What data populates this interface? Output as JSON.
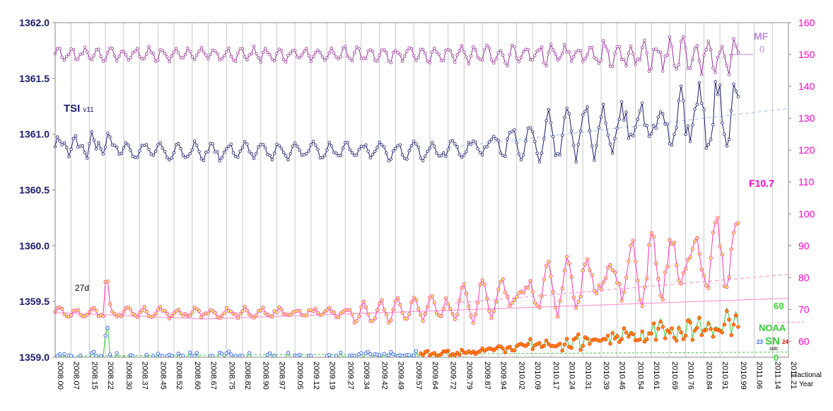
{
  "chart_data": {
    "type": "line",
    "title": "",
    "xlabel": "Fractional Year",
    "x_ticks": [
      "2008.00",
      "2008.07",
      "2008.15",
      "2008.22",
      "2008.30",
      "2008.37",
      "2008.45",
      "2008.52",
      "2008.60",
      "2008.67",
      "2008.75",
      "2008.82",
      "2008.90",
      "2008.97",
      "2009.05",
      "2009.12",
      "2009.19",
      "2009.27",
      "2009.34",
      "2009.42",
      "2009.49",
      "2009.57",
      "2009.64",
      "2009.72",
      "2009.79",
      "2009.87",
      "2009.94",
      "2010.02",
      "2010.09",
      "2010.17",
      "2010.24",
      "2010.31",
      "2010.39",
      "2010.46",
      "2010.54",
      "2010.61",
      "2010.69",
      "2010.76",
      "2010.84",
      "2010.91",
      "2010.99",
      "2011.06",
      "2011.14",
      "2011.21"
    ],
    "xlim": [
      2008.0,
      2011.21
    ],
    "y_left": {
      "ticks": [
        "1359.0",
        "1359.5",
        "1360.0",
        "1360.5",
        "1361.0",
        "1361.5",
        "1362.0"
      ],
      "ylim": [
        1359.0,
        1362.0
      ],
      "color": "#1a1a6e"
    },
    "y_right": {
      "ticks": [
        "60",
        "70",
        "80",
        "90",
        "100",
        "110",
        "120",
        "130",
        "140",
        "150",
        "160"
      ],
      "ylim": [
        55,
        160
      ],
      "color": "#ff00cc"
    },
    "y_right_small": {
      "ticks": [
        "0",
        "60"
      ],
      "color": "#33dd33"
    },
    "labels": {
      "tsi": "TSI",
      "tsi_sub": "v11",
      "mf": "MF",
      "mf_zero": "0",
      "f107": "F10.7",
      "d27": "27d",
      "noaa": "NOAA",
      "sn": "SN",
      "sn_sub": "sidc",
      "sn_23": "23",
      "sn_24": "24"
    },
    "series": [
      {
        "name": "MF",
        "color": "#993399",
        "base": 150,
        "x": [],
        "values": []
      },
      {
        "name": "TSI",
        "color": "#1a1a6e",
        "x": [],
        "values": []
      },
      {
        "name": "F10.7",
        "color": "#ff33aa",
        "x": [],
        "values": []
      },
      {
        "name": "NOAA",
        "color": "#33cc33",
        "x": [],
        "values": []
      },
      {
        "name": "SN",
        "color": "#ff3300",
        "x": [],
        "values": []
      }
    ],
    "colors": {
      "grid": "#c8c8c8",
      "mf": "#993399",
      "mf_label": "#bb88dd",
      "tsi": "#1a1a6e",
      "f107": "#ff33aa",
      "f107_label": "#ff00cc",
      "noaa": "#33cc33",
      "sn": "#ff3300",
      "cycle23": "#3366ff",
      "cycle24": "#ff0000",
      "trend_tsi": "#99bbee",
      "trend_f107": "#ff88cc"
    }
  }
}
